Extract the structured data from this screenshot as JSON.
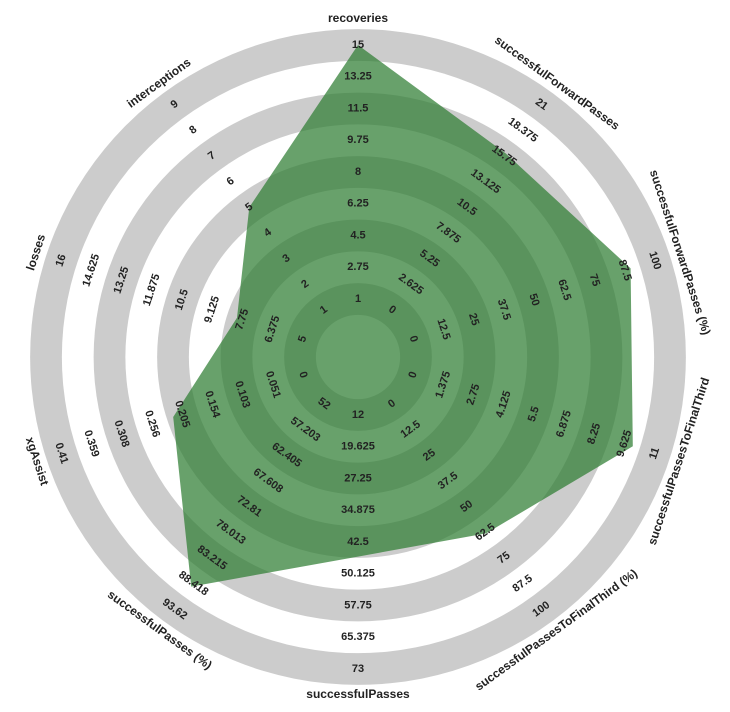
{
  "chart_data": {
    "type": "radar",
    "categories": [
      "recoveries",
      "successfulForwardPasses",
      "successfulForwardPasses (%)",
      "successfulPassesToFinalThird",
      "successfulPassesToFinalThird (%)",
      "successfulPasses",
      "successfulPasses (%)",
      "xgAssist",
      "losses",
      "interceptions"
    ],
    "ranges": [
      [
        1,
        15
      ],
      [
        0,
        21
      ],
      [
        0,
        100
      ],
      [
        0,
        11
      ],
      [
        0,
        100
      ],
      [
        12,
        73
      ],
      [
        52,
        93.62
      ],
      [
        0,
        0.41
      ],
      [
        5,
        16
      ],
      [
        1,
        9
      ]
    ],
    "axis_ticks": [
      [
        1,
        2.75,
        4.5,
        6.25,
        8,
        9.75,
        11.5,
        13.25,
        15
      ],
      [
        0,
        2.625,
        5.25,
        7.875,
        10.5,
        13.125,
        15.75,
        18.375,
        21
      ],
      [
        0,
        12.5,
        25,
        37.5,
        50,
        62.5,
        75,
        87.5,
        100
      ],
      [
        0,
        1.375,
        2.75,
        4.125,
        5.5,
        6.875,
        8.25,
        9.625,
        11
      ],
      [
        0,
        12.5,
        25,
        37.5,
        50,
        62.5,
        75,
        87.5,
        100
      ],
      [
        12,
        19.625,
        27.25,
        34.875,
        42.5,
        50.125,
        57.75,
        65.375,
        73
      ],
      [
        52,
        57.203,
        62.405,
        67.608,
        72.81,
        78.013,
        83.215,
        88.418,
        93.62
      ],
      [
        0,
        0.051,
        0.103,
        0.154,
        0.205,
        0.256,
        0.308,
        0.359,
        0.41
      ],
      [
        5,
        6.375,
        7.75,
        9.125,
        10.5,
        11.875,
        13.25,
        14.625,
        16
      ],
      [
        1,
        2,
        3,
        4,
        5,
        6,
        7,
        8,
        9
      ]
    ],
    "series": [
      {
        "color": "#2e7d32",
        "values": [
          15,
          16,
          90,
          10,
          63,
          46,
          89,
          0.22,
          8,
          5
        ]
      }
    ],
    "ring_color": "#cccccc"
  }
}
